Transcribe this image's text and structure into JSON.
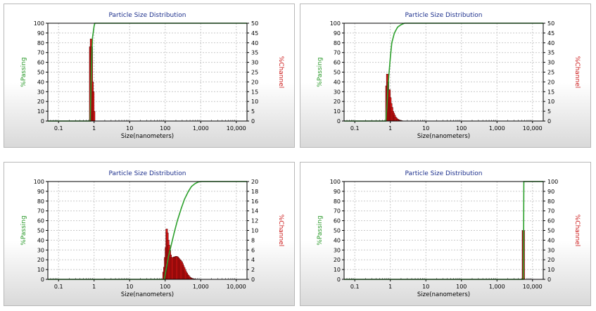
{
  "chart_data": [
    {
      "type": "bar",
      "title": "Particle Size Distribution",
      "xlabel": "Size(nanometers)",
      "ylabel_left": "%Passing",
      "ylabel_right": "%Channel",
      "x_scale": "log",
      "xlim": [
        0.05,
        20000
      ],
      "x_ticks": [
        0.1,
        1,
        10,
        100,
        1000,
        10000
      ],
      "x_tick_labels": [
        "0.1",
        "1",
        "10",
        "100",
        "1,000",
        "10,000"
      ],
      "ylim_left": [
        0,
        100
      ],
      "y_ticks_left": [
        0,
        10,
        20,
        30,
        40,
        50,
        60,
        70,
        80,
        90,
        100
      ],
      "ylim_right": [
        0,
        50
      ],
      "y_ticks_right": [
        0,
        5,
        10,
        15,
        20,
        25,
        30,
        35,
        40,
        45,
        50
      ],
      "grid": true,
      "series": [
        {
          "name": "%Passing",
          "kind": "line",
          "color": "#2ca02c",
          "x": [
            0.05,
            0.78,
            0.8,
            0.85,
            0.9,
            1.0,
            1.05,
            20000
          ],
          "y": [
            0,
            0,
            20,
            60,
            85,
            97,
            100,
            100
          ]
        },
        {
          "name": "%Channel",
          "kind": "bar",
          "color": "#d31212",
          "x": [
            0.78,
            0.82,
            0.86,
            0.9,
            0.95,
            1.0
          ],
          "y": [
            38,
            42,
            38,
            20,
            15,
            5
          ]
        }
      ]
    },
    {
      "type": "bar",
      "title": "Particle Size Distribution",
      "xlabel": "Size(nanometers)",
      "ylabel_left": "%Passing",
      "ylabel_right": "%Channel",
      "x_scale": "log",
      "xlim": [
        0.05,
        20000
      ],
      "x_ticks": [
        0.1,
        1,
        10,
        100,
        1000,
        10000
      ],
      "x_tick_labels": [
        "0.1",
        "1",
        "10",
        "100",
        "1,000",
        "10,000"
      ],
      "ylim_left": [
        0,
        100
      ],
      "y_ticks_left": [
        0,
        10,
        20,
        30,
        40,
        50,
        60,
        70,
        80,
        90,
        100
      ],
      "ylim_right": [
        0,
        50
      ],
      "y_ticks_right": [
        0,
        5,
        10,
        15,
        20,
        25,
        30,
        35,
        40,
        45,
        50
      ],
      "grid": true,
      "series": [
        {
          "name": "%Passing",
          "kind": "line",
          "color": "#2ca02c",
          "x": [
            0.05,
            0.75,
            0.8,
            0.9,
            1.0,
            1.1,
            1.3,
            1.6,
            2.0,
            2.5,
            20000
          ],
          "y": [
            0,
            0,
            15,
            45,
            65,
            80,
            90,
            96,
            98.5,
            100,
            100
          ]
        },
        {
          "name": "%Channel",
          "kind": "bar",
          "color": "#d31212",
          "x": [
            0.78,
            0.82,
            0.86,
            0.9,
            0.95,
            1.0,
            1.06,
            1.12,
            1.18,
            1.25,
            1.32,
            1.4,
            1.5,
            1.6,
            1.7,
            1.8,
            1.95,
            2.1
          ],
          "y": [
            18,
            24,
            20,
            16,
            16,
            12,
            9,
            7,
            5,
            4,
            3,
            2,
            1.5,
            1,
            0.7,
            0.5,
            0.3,
            0.2
          ]
        }
      ]
    },
    {
      "type": "bar",
      "title": "Particle Size Distribution",
      "xlabel": "Size(nanometers)",
      "ylabel_left": "%Passing",
      "ylabel_right": "%Channel",
      "x_scale": "log",
      "xlim": [
        0.05,
        20000
      ],
      "x_ticks": [
        0.1,
        1,
        10,
        100,
        1000,
        10000
      ],
      "x_tick_labels": [
        "0.1",
        "1",
        "10",
        "100",
        "1,000",
        "10,000"
      ],
      "ylim_left": [
        0,
        100
      ],
      "y_ticks_left": [
        0,
        10,
        20,
        30,
        40,
        50,
        60,
        70,
        80,
        90,
        100
      ],
      "ylim_right": [
        0,
        20
      ],
      "y_ticks_right": [
        0,
        2,
        4,
        6,
        8,
        10,
        12,
        14,
        16,
        18,
        20
      ],
      "grid": true,
      "series": [
        {
          "name": "%Passing",
          "kind": "line",
          "color": "#2ca02c",
          "x": [
            0.05,
            95,
            100,
            110,
            125,
            150,
            180,
            220,
            280,
            350,
            450,
            550,
            700,
            850,
            1000,
            20000
          ],
          "y": [
            0,
            0,
            5,
            13,
            24,
            36,
            48,
            60,
            72,
            82,
            90,
            95,
            98,
            99.5,
            100,
            100
          ]
        },
        {
          "name": "%Channel",
          "kind": "bar",
          "color": "#d31212",
          "x": [
            90,
            95,
            100,
            105,
            110,
            116,
            122,
            128,
            135,
            142,
            150,
            160,
            170,
            180,
            190,
            200,
            210,
            222,
            235,
            248,
            262,
            276,
            292,
            308,
            325,
            343,
            362,
            382,
            404,
            426,
            450,
            475,
            500,
            530,
            560,
            600,
            640,
            690,
            750,
            820
          ],
          "y": [
            1.5,
            2.5,
            4.5,
            6.5,
            10.3,
            9.5,
            8,
            7,
            6,
            5,
            4.5,
            4.5,
            4.5,
            4.6,
            4.6,
            4.7,
            4.7,
            4.6,
            4.4,
            4.2,
            4,
            3.8,
            3.6,
            3.2,
            2.8,
            2.4,
            2,
            1.6,
            1.3,
            1,
            0.8,
            0.6,
            0.4,
            0.3,
            0.2,
            0.15,
            0.1,
            0.08,
            0.05,
            0.03
          ]
        }
      ]
    },
    {
      "type": "bar",
      "title": "Particle Size Distribution",
      "xlabel": "Size(nanometers)",
      "ylabel_left": "%Passing",
      "ylabel_right": "%Channel",
      "x_scale": "log",
      "xlim": [
        0.05,
        20000
      ],
      "x_ticks": [
        0.1,
        1,
        10,
        100,
        1000,
        10000
      ],
      "x_tick_labels": [
        "0.1",
        "1",
        "10",
        "100",
        "1,000",
        "10,000"
      ],
      "ylim_left": [
        0,
        100
      ],
      "y_ticks_left": [
        0,
        10,
        20,
        30,
        40,
        50,
        60,
        70,
        80,
        90,
        100
      ],
      "ylim_right": [
        0,
        100
      ],
      "y_ticks_right": [
        0,
        10,
        20,
        30,
        40,
        50,
        60,
        70,
        80,
        90,
        100
      ],
      "grid": true,
      "series": [
        {
          "name": "%Passing",
          "kind": "line",
          "color": "#2ca02c",
          "x": [
            0.05,
            5500,
            5600,
            5650,
            5700,
            20000
          ],
          "y": [
            0,
            0,
            30,
            70,
            100,
            100
          ]
        },
        {
          "name": "%Channel",
          "kind": "bar",
          "color": "#d31212",
          "x": [
            5400,
            5650
          ],
          "y": [
            50,
            50
          ]
        }
      ]
    }
  ]
}
